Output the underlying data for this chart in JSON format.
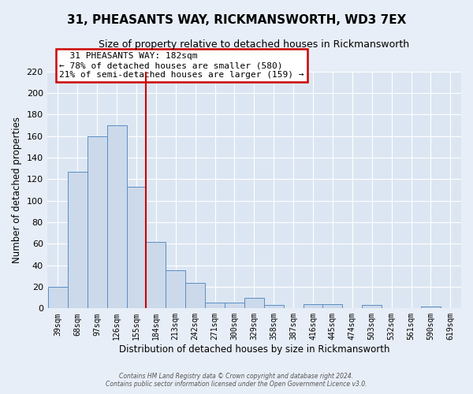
{
  "title": "31, PHEASANTS WAY, RICKMANSWORTH, WD3 7EX",
  "subtitle": "Size of property relative to detached houses in Rickmansworth",
  "xlabel": "Distribution of detached houses by size in Rickmansworth",
  "ylabel": "Number of detached properties",
  "bar_labels": [
    "39sqm",
    "68sqm",
    "97sqm",
    "126sqm",
    "155sqm",
    "184sqm",
    "213sqm",
    "242sqm",
    "271sqm",
    "300sqm",
    "329sqm",
    "358sqm",
    "387sqm",
    "416sqm",
    "445sqm",
    "474sqm",
    "503sqm",
    "532sqm",
    "561sqm",
    "590sqm",
    "619sqm"
  ],
  "bar_values": [
    20,
    127,
    160,
    170,
    113,
    62,
    35,
    24,
    5,
    5,
    10,
    3,
    0,
    4,
    4,
    0,
    3,
    0,
    0,
    2,
    0
  ],
  "bar_color": "#ccd9ea",
  "bar_edge_color": "#5b8ec4",
  "vline_color": "#cc0000",
  "ylim": [
    0,
    220
  ],
  "yticks": [
    0,
    20,
    40,
    60,
    80,
    100,
    120,
    140,
    160,
    180,
    200,
    220
  ],
  "annotation_title": "31 PHEASANTS WAY: 182sqm",
  "annotation_line1": "← 78% of detached houses are smaller (580)",
  "annotation_line2": "21% of semi-detached houses are larger (159) →",
  "annotation_box_color": "#cc0000",
  "footer_line1": "Contains HM Land Registry data © Crown copyright and database right 2024.",
  "footer_line2": "Contains public sector information licensed under the Open Government Licence v3.0.",
  "bg_color": "#e8eef7",
  "plot_bg_color": "#dce6f2",
  "grid_color": "#ffffff"
}
